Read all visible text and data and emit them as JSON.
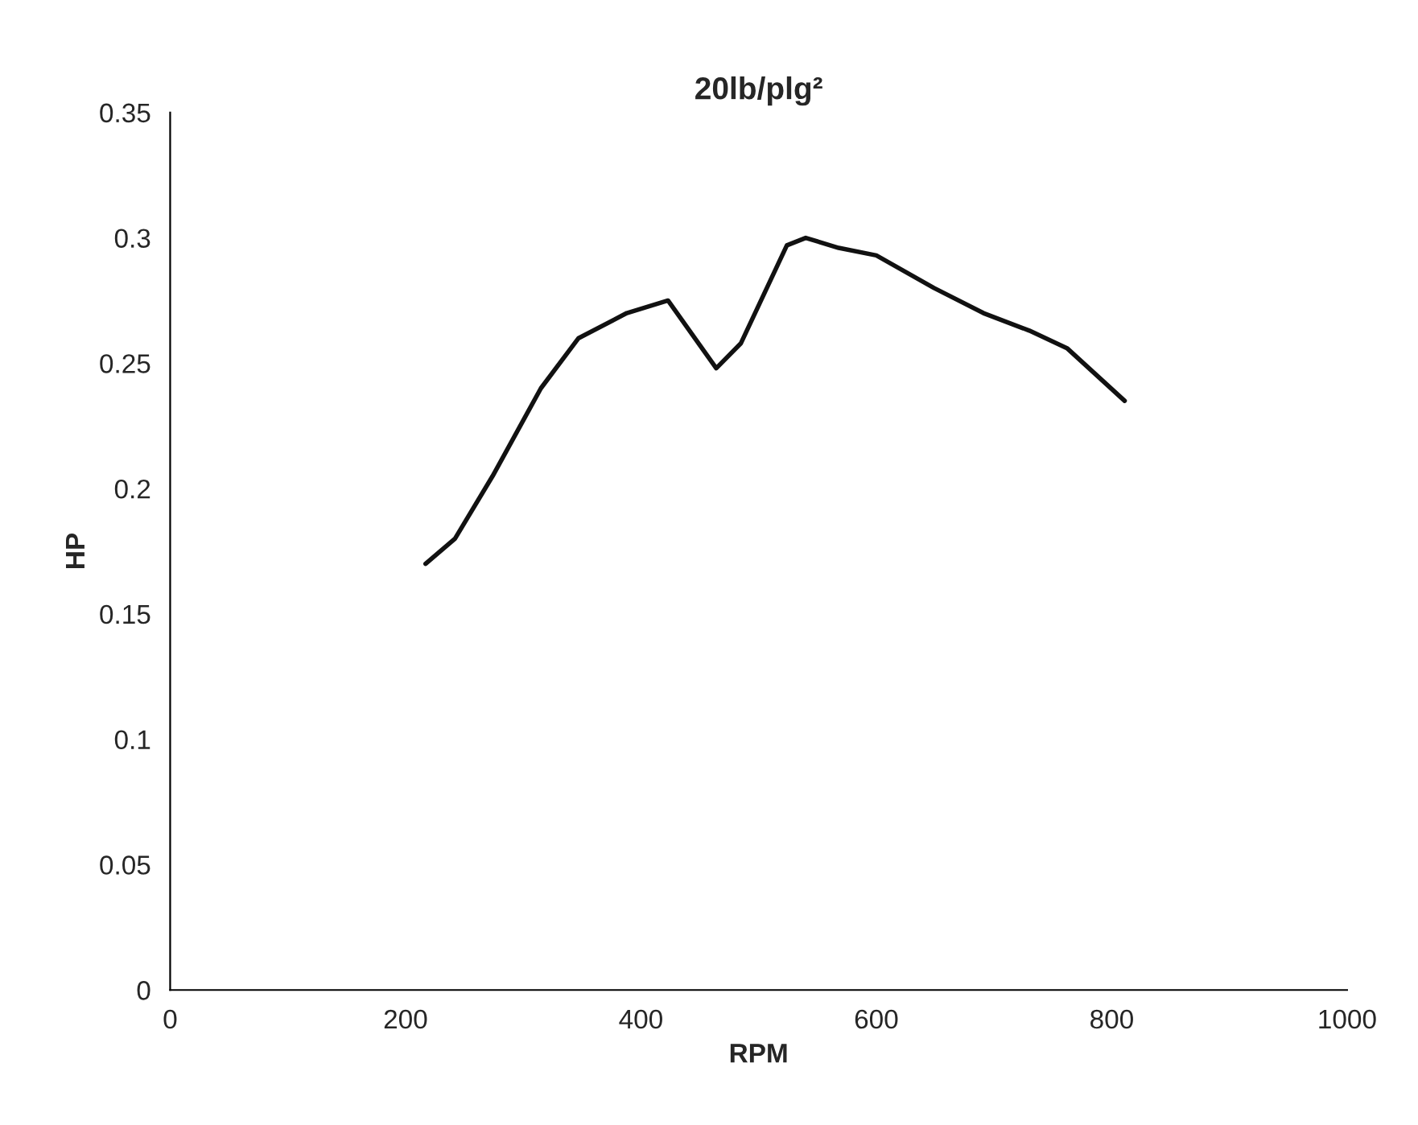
{
  "chart_data": {
    "type": "line",
    "title": "20lb/plg²",
    "xlabel": "RPM",
    "ylabel": "HP",
    "x": [
      217,
      242,
      274,
      315,
      347,
      388,
      423,
      464,
      485,
      524,
      540,
      568,
      600,
      649,
      691,
      730,
      762,
      811
    ],
    "series": [
      {
        "color": "#111111",
        "values": [
          0.17,
          0.18,
          0.205,
          0.24,
          0.26,
          0.27,
          0.275,
          0.248,
          0.258,
          0.297,
          0.3,
          0.296,
          0.293,
          0.28,
          0.27,
          0.263,
          0.256,
          0.235
        ]
      }
    ],
    "xlim": [
      0,
      1000
    ],
    "xticks": [
      0,
      200,
      400,
      600,
      800,
      1000
    ],
    "ylim": [
      0,
      0.35
    ],
    "yticks": [
      0,
      0.05,
      0.1,
      0.15,
      0.2,
      0.25,
      0.3,
      0.35
    ],
    "grid": false,
    "legend": false,
    "marker": "none",
    "line_style": "solid"
  }
}
